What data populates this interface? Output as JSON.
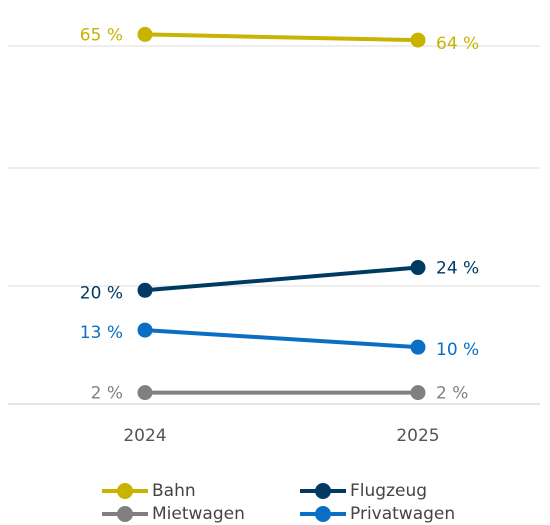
{
  "chart_data": {
    "type": "line",
    "title": "",
    "xlabel": "",
    "ylabel": "",
    "x": [
      "2024",
      "2025"
    ],
    "ylim": [
      0,
      70
    ],
    "value_suffix": " %",
    "grid": "horizontal",
    "legend_position": "bottom",
    "series": [
      {
        "name": "Bahn",
        "values": [
          65,
          64
        ],
        "color": "#c8b400"
      },
      {
        "name": "Flugzeug",
        "values": [
          20,
          24
        ],
        "color": "#003a63"
      },
      {
        "name": "Mietwagen",
        "values": [
          2,
          2
        ],
        "color": "#808080"
      },
      {
        "name": "Privatwagen",
        "values": [
          13,
          10
        ],
        "color": "#0a6fc4"
      }
    ]
  }
}
